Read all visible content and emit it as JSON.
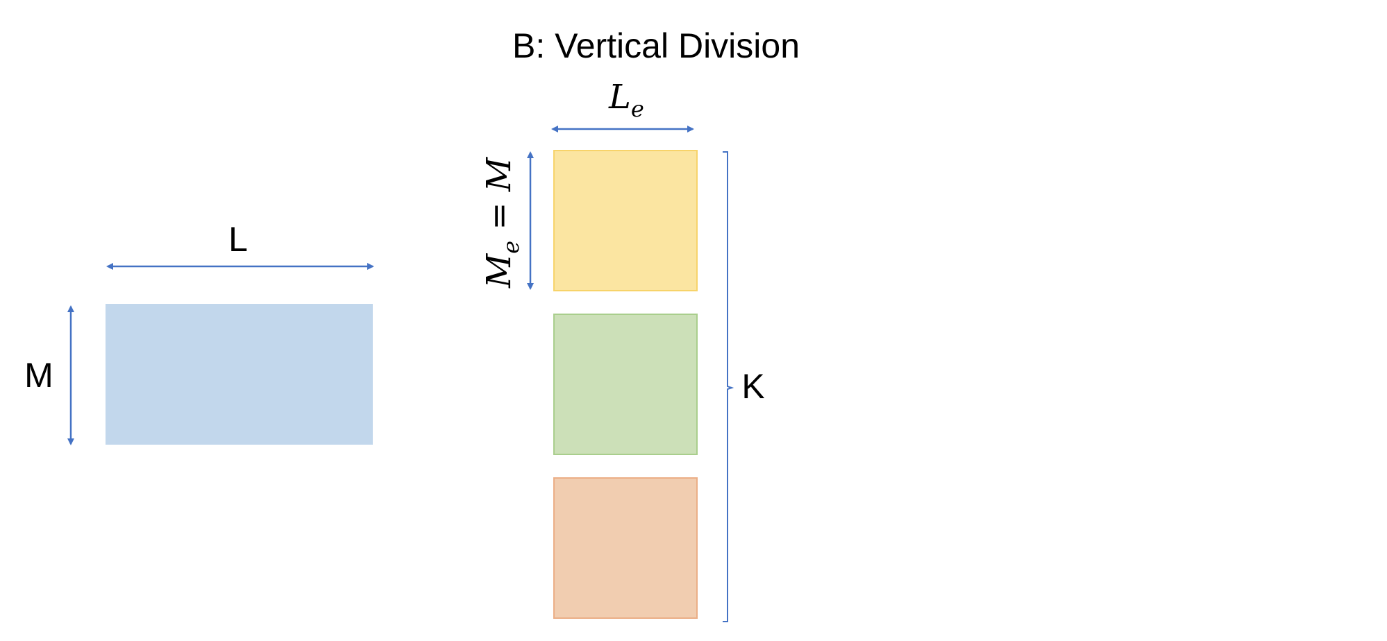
{
  "title": "B: Vertical Division",
  "original": {
    "width_label": "L",
    "height_label": "M"
  },
  "blocks": {
    "width_label": {
      "base": "L",
      "sub": "e"
    },
    "height_label": {
      "base": "M",
      "sub": "e",
      "eq": " = ",
      "rhs": "M"
    },
    "group_label": "K"
  },
  "colors": {
    "arrow": "#4472C4",
    "original_fill": "#C2D7EC",
    "block_1_fill": "#FBE5A1",
    "block_1_stroke": "#F7D36A",
    "block_2_fill": "#CCE0B8",
    "block_2_stroke": "#A9CE8C",
    "block_3_fill": "#F1CDB0",
    "block_3_stroke": "#EBAE86"
  }
}
